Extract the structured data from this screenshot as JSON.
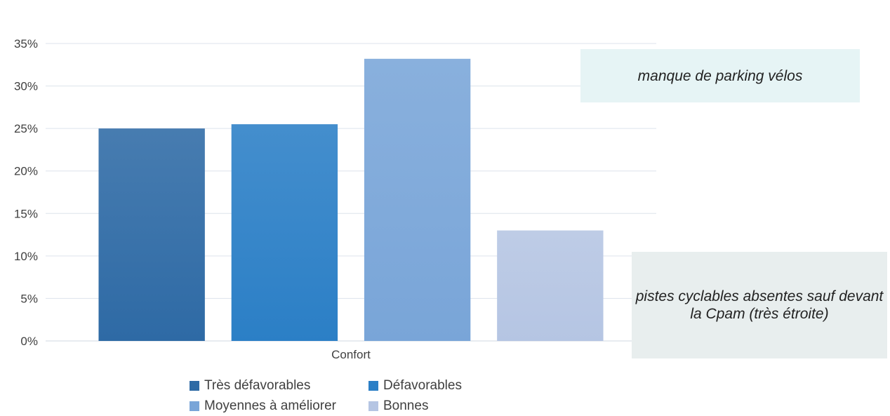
{
  "chart_data": {
    "type": "bar",
    "categories": [
      "Confort"
    ],
    "series": [
      {
        "name": "Très défavorables",
        "values": [
          25.0
        ],
        "color": "#2e6aa5"
      },
      {
        "name": "Défavorables",
        "values": [
          25.5
        ],
        "color": "#2b7fc6"
      },
      {
        "name": "Moyennes à améliorer",
        "values": [
          33.2
        ],
        "color": "#79a5d8"
      },
      {
        "name": "Bonnes",
        "values": [
          13.0
        ],
        "color": "#b5c5e3"
      }
    ],
    "ylim": [
      0,
      35
    ],
    "yticks": [
      "0%",
      "5%",
      "10%",
      "15%",
      "20%",
      "25%",
      "30%",
      "35%"
    ],
    "title": "",
    "xlabel": "",
    "ylabel": "",
    "grid": true,
    "legend_position": "bottom"
  },
  "annotations": {
    "parking": "manque de parking vélos",
    "pistes": "pistes cyclables absentes sauf devant la Cpam (très étroite)"
  }
}
